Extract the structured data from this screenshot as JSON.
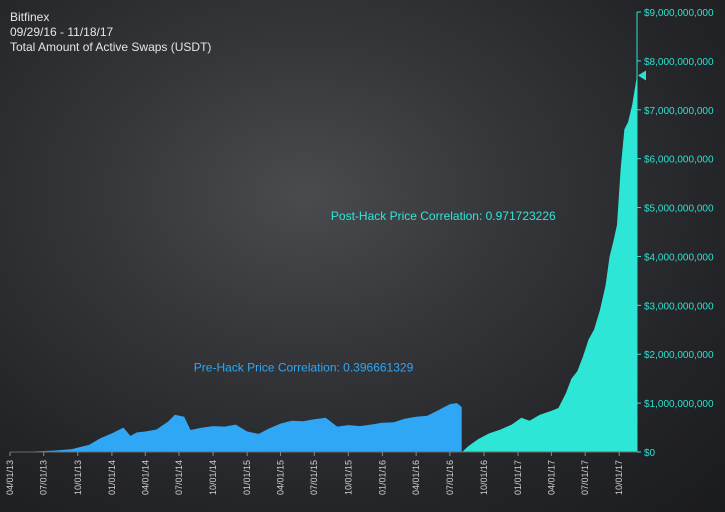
{
  "header": {
    "source": "Bitfinex",
    "date_range": "09/29/16 - 11/18/17",
    "title": "Total Amount of Active Swaps (USDT)"
  },
  "colors": {
    "pre_hack": "#2fa7f5",
    "post_hack": "#2ee6d6",
    "axis_text": "#2fe0cf",
    "x_text": "#d0d0d0"
  },
  "chart_data": {
    "type": "area",
    "title": "Total Amount of Active Swaps (USDT)",
    "xlabel": "",
    "ylabel": "",
    "ylim": [
      0,
      9000000000
    ],
    "grid": false,
    "y_ticks": [
      {
        "value": 0,
        "label": "$0"
      },
      {
        "value": 1000000000,
        "label": "$1,000,000,000"
      },
      {
        "value": 2000000000,
        "label": "$2,000,000,000"
      },
      {
        "value": 3000000000,
        "label": "$3,000,000,000"
      },
      {
        "value": 4000000000,
        "label": "$4,000,000,000"
      },
      {
        "value": 5000000000,
        "label": "$5,000,000,000"
      },
      {
        "value": 6000000000,
        "label": "$6,000,000,000"
      },
      {
        "value": 7000000000,
        "label": "$7,000,000,000"
      },
      {
        "value": 8000000000,
        "label": "$8,000,000,000"
      },
      {
        "value": 9000000000,
        "label": "$9,000,000,000"
      }
    ],
    "x_ticks": [
      "04/01/13",
      "07/01/13",
      "10/01/13",
      "01/01/14",
      "04/01/14",
      "07/01/14",
      "10/01/14",
      "01/01/15",
      "04/01/15",
      "07/01/15",
      "10/01/15",
      "01/01/16",
      "04/01/16",
      "07/01/16",
      "10/01/16",
      "01/01/17",
      "04/01/17",
      "07/01/17",
      "10/01/17"
    ],
    "last_value_marker": 7700000000,
    "series": [
      {
        "label": "pre_hack",
        "x": [
          "2013-04-01",
          "2013-06-01",
          "2013-08-01",
          "2013-09-15",
          "2013-11-01",
          "2013-12-01",
          "2014-01-01",
          "2014-02-01",
          "2014-02-20",
          "2014-03-10",
          "2014-04-01",
          "2014-05-01",
          "2014-06-01",
          "2014-06-20",
          "2014-07-15",
          "2014-08-01",
          "2014-09-01",
          "2014-10-01",
          "2014-11-01",
          "2014-12-01",
          "2015-01-01",
          "2015-02-01",
          "2015-03-01",
          "2015-04-01",
          "2015-05-01",
          "2015-06-01",
          "2015-07-01",
          "2015-08-01",
          "2015-09-01",
          "2015-10-01",
          "2015-11-01",
          "2015-12-01",
          "2016-01-01",
          "2016-02-01",
          "2016-03-01",
          "2016-04-01",
          "2016-05-01",
          "2016-06-01",
          "2016-07-01",
          "2016-07-20",
          "2016-08-02"
        ],
        "values": [
          0,
          10000000,
          30000000,
          60000000,
          150000000,
          280000000,
          380000000,
          500000000,
          330000000,
          400000000,
          420000000,
          460000000,
          620000000,
          760000000,
          720000000,
          450000000,
          500000000,
          530000000,
          520000000,
          560000000,
          420000000,
          370000000,
          480000000,
          580000000,
          640000000,
          630000000,
          670000000,
          700000000,
          520000000,
          550000000,
          530000000,
          560000000,
          600000000,
          610000000,
          680000000,
          720000000,
          740000000,
          860000000,
          980000000,
          1000000000,
          920000000
        ]
      },
      {
        "label": "post_hack",
        "x": [
          "2016-08-03",
          "2016-08-20",
          "2016-09-15",
          "2016-10-15",
          "2016-11-15",
          "2016-12-15",
          "2017-01-10",
          "2017-02-01",
          "2017-03-01",
          "2017-04-01",
          "2017-04-20",
          "2017-05-10",
          "2017-05-25",
          "2017-06-10",
          "2017-06-25",
          "2017-07-10",
          "2017-07-25",
          "2017-08-10",
          "2017-08-25",
          "2017-09-05",
          "2017-09-15",
          "2017-09-25",
          "2017-10-05",
          "2017-10-15",
          "2017-10-25",
          "2017-11-05",
          "2017-11-18"
        ],
        "values": [
          0,
          120000000,
          260000000,
          380000000,
          460000000,
          560000000,
          700000000,
          640000000,
          760000000,
          840000000,
          900000000,
          1200000000,
          1500000000,
          1650000000,
          1950000000,
          2300000000,
          2500000000,
          2900000000,
          3400000000,
          4000000000,
          4300000000,
          4650000000,
          5800000000,
          6600000000,
          6750000000,
          7100000000,
          7700000000
        ]
      }
    ],
    "annotations": [
      {
        "text": "Pre-Hack Price Correlation: 0.396661329",
        "series": "pre_hack"
      },
      {
        "text": "Post-Hack Price Correlation: 0.971723226",
        "series": "post_hack"
      }
    ]
  }
}
